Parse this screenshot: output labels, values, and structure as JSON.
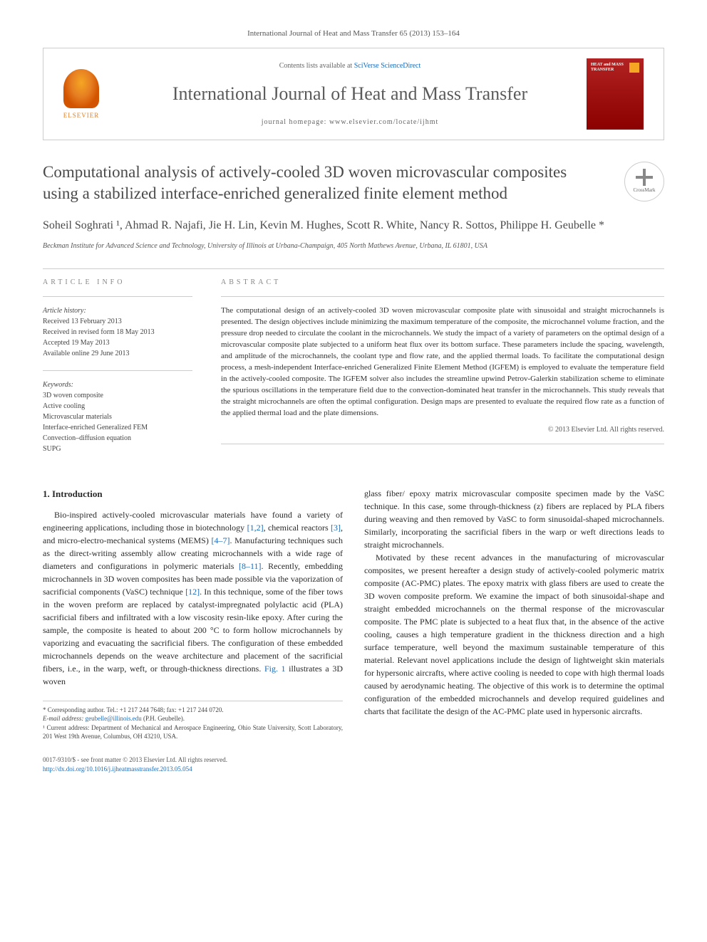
{
  "journal_ref": "International Journal of Heat and Mass Transfer 65 (2013) 153–164",
  "header": {
    "contents_prefix": "Contents lists available at ",
    "contents_link": "SciVerse ScienceDirect",
    "journal_name": "International Journal of Heat and Mass Transfer",
    "homepage_prefix": "journal homepage: ",
    "homepage_url": "www.elsevier.com/locate/ijhmt",
    "publisher_logo_text": "ELSEVIER",
    "cover_title": "HEAT and MASS TRANSFER"
  },
  "article": {
    "title": "Computational analysis of actively-cooled 3D woven microvascular composites using a stabilized interface-enriched generalized finite element method",
    "crossmark_label": "CrossMark",
    "authors_html": "Soheil Soghrati ¹, Ahmad R. Najafi, Jie H. Lin, Kevin M. Hughes, Scott R. White, Nancy R. Sottos, Philippe H. Geubelle *",
    "affiliation": "Beckman Institute for Advanced Science and Technology, University of Illinois at Urbana-Champaign, 405 North Mathews Avenue, Urbana, IL 61801, USA"
  },
  "article_info": {
    "label": "ARTICLE INFO",
    "history_heading": "Article history:",
    "received": "Received 13 February 2013",
    "revised": "Received in revised form 18 May 2013",
    "accepted": "Accepted 19 May 2013",
    "online": "Available online 29 June 2013",
    "keywords_heading": "Keywords:",
    "keywords": [
      "3D woven composite",
      "Active cooling",
      "Microvascular materials",
      "Interface-enriched Generalized FEM",
      "Convection–diffusion equation",
      "SUPG"
    ]
  },
  "abstract": {
    "label": "ABSTRACT",
    "text": "The computational design of an actively-cooled 3D woven microvascular composite plate with sinusoidal and straight microchannels is presented. The design objectives include minimizing the maximum temperature of the composite, the microchannel volume fraction, and the pressure drop needed to circulate the coolant in the microchannels. We study the impact of a variety of parameters on the optimal design of a microvascular composite plate subjected to a uniform heat flux over its bottom surface. These parameters include the spacing, wavelength, and amplitude of the microchannels, the coolant type and flow rate, and the applied thermal loads. To facilitate the computational design process, a mesh-independent Interface-enriched Generalized Finite Element Method (IGFEM) is employed to evaluate the temperature field in the actively-cooled composite. The IGFEM solver also includes the streamline upwind Petrov-Galerkin stabilization scheme to eliminate the spurious oscillations in the temperature field due to the convection-dominated heat transfer in the microchannels. This study reveals that the straight microchannels are often the optimal configuration. Design maps are presented to evaluate the required flow rate as a function of the applied thermal load and the plate dimensions.",
    "copyright": "© 2013 Elsevier Ltd. All rights reserved."
  },
  "body": {
    "intro_heading": "1. Introduction",
    "col1_p1a": "Bio-inspired actively-cooled microvascular materials have found a variety of engineering applications, including those in biotechnology ",
    "col1_ref1": "[1,2]",
    "col1_p1b": ", chemical reactors ",
    "col1_ref2": "[3]",
    "col1_p1c": ", and micro-electro-mechanical systems (MEMS) ",
    "col1_ref3": "[4–7]",
    "col1_p1d": ". Manufacturing techniques such as the direct-writing assembly allow creating microchannels with a wide rage of diameters and configurations in polymeric materials ",
    "col1_ref4": "[8–11]",
    "col1_p1e": ". Recently, embedding microchannels in 3D woven composites has been made possible via the vaporization of sacrificial components (VaSC) technique ",
    "col1_ref5": "[12]",
    "col1_p1f": ". In this technique, some of the fiber tows in the woven preform are replaced by catalyst-impregnated polylactic acid (PLA) sacrificial fibers and infiltrated with a low viscosity resin-like epoxy. After curing the sample, the composite is heated to about 200 °C to form hollow microchannels by vaporizing and evacuating the sacrificial fibers. The configuration of these embedded microchannels depends on the weave architecture and placement of the sacrificial fibers, i.e., in the warp, weft, or through-thickness directions. ",
    "col1_fig": "Fig. 1",
    "col1_p1g": " illustrates a 3D woven",
    "col2_p1": "glass fiber/ epoxy matrix microvascular composite specimen made by the VaSC technique. In this case, some through-thickness (z) fibers are replaced by PLA fibers during weaving and then removed by VaSC to form sinusoidal-shaped microchannels. Similarly, incorporating the sacrificial fibers in the warp or weft directions leads to straight microchannels.",
    "col2_p2": "Motivated by these recent advances in the manufacturing of microvascular composites, we present hereafter a design study of actively-cooled polymeric matrix composite (AC-PMC) plates. The epoxy matrix with glass fibers are used to create the 3D woven composite preform. We examine the impact of both sinusoidal-shape and straight embedded microchannels on the thermal response of the microvascular composite. The PMC plate is subjected to a heat flux that, in the absence of the active cooling, causes a high temperature gradient in the thickness direction and a high surface temperature, well beyond the maximum sustainable temperature of this material. Relevant novel applications include the design of lightweight skin materials for hypersonic aircrafts, where active cooling is needed to cope with high thermal loads caused by aerodynamic heating. The objective of this work is to determine the optimal configuration of the embedded microchannels and develop required guidelines and charts that facilitate the design of the AC-PMC plate used in hypersonic aircrafts."
  },
  "footnotes": {
    "corr": "* Corresponding author. Tel.: +1 217 244 7648; fax: +1 217 244 0720.",
    "email_label": "E-mail address: ",
    "email": "geubelle@illinois.edu",
    "email_suffix": " (P.H. Geubelle).",
    "addr": "¹ Current address: Department of Mechanical and Aerospace Engineering, Ohio State University, Scott Laboratory, 201 West 19th Avenue, Columbus, OH 43210, USA."
  },
  "footer": {
    "issn": "0017-9310/$ - see front matter © 2013 Elsevier Ltd. All rights reserved.",
    "doi": "http://dx.doi.org/10.1016/j.ijheatmasstransfer.2013.05.054"
  },
  "colors": {
    "link": "#1a6bb8",
    "text": "#333333",
    "heading": "#4a4a4a",
    "elsevier_orange": "#e67e22",
    "cover_red": "#8b0000"
  }
}
